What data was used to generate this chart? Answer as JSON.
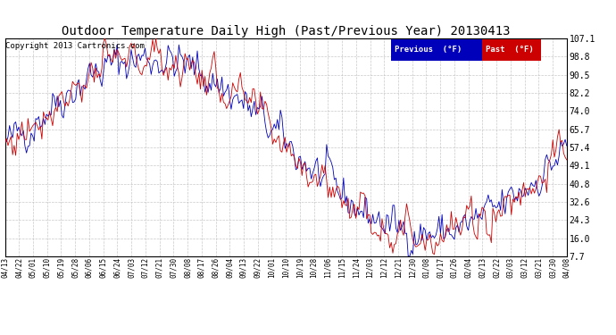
{
  "title": "Outdoor Temperature Daily High (Past/Previous Year) 20130413",
  "copyright": "Copyright 2013 Cartronics.com",
  "yticks_vals": [
    107.1,
    98.8,
    90.5,
    82.2,
    74.0,
    65.7,
    57.4,
    49.1,
    40.8,
    32.6,
    24.3,
    16.0,
    7.7
  ],
  "legend_prev_label": "Previous  (°F)",
  "legend_past_label": "Past  (°F)",
  "legend_prev_color": "#0000bb",
  "legend_past_color": "#cc0000",
  "legend_prev_bg": "#0000bb",
  "legend_past_bg": "#cc0000",
  "background_color": "#ffffff",
  "plot_bg_color": "#ffffff",
  "grid_color": "#bbbbbb",
  "title_color": "#000000",
  "copyright_color": "#000000",
  "title_fontsize": 10,
  "copyright_fontsize": 6.5,
  "xtick_labels": [
    "04/13",
    "04/22",
    "05/01",
    "05/10",
    "05/19",
    "05/28",
    "06/06",
    "06/15",
    "06/24",
    "07/03",
    "07/12",
    "07/21",
    "07/30",
    "08/08",
    "08/17",
    "08/26",
    "09/04",
    "09/13",
    "09/22",
    "10/01",
    "10/10",
    "10/19",
    "10/28",
    "11/06",
    "11/15",
    "11/24",
    "12/03",
    "12/12",
    "12/21",
    "12/30",
    "01/08",
    "01/17",
    "01/26",
    "02/04",
    "02/13",
    "02/22",
    "03/03",
    "03/12",
    "03/21",
    "03/30",
    "04/08"
  ],
  "num_points": 366,
  "ylim": [
    7.7,
    107.1
  ]
}
